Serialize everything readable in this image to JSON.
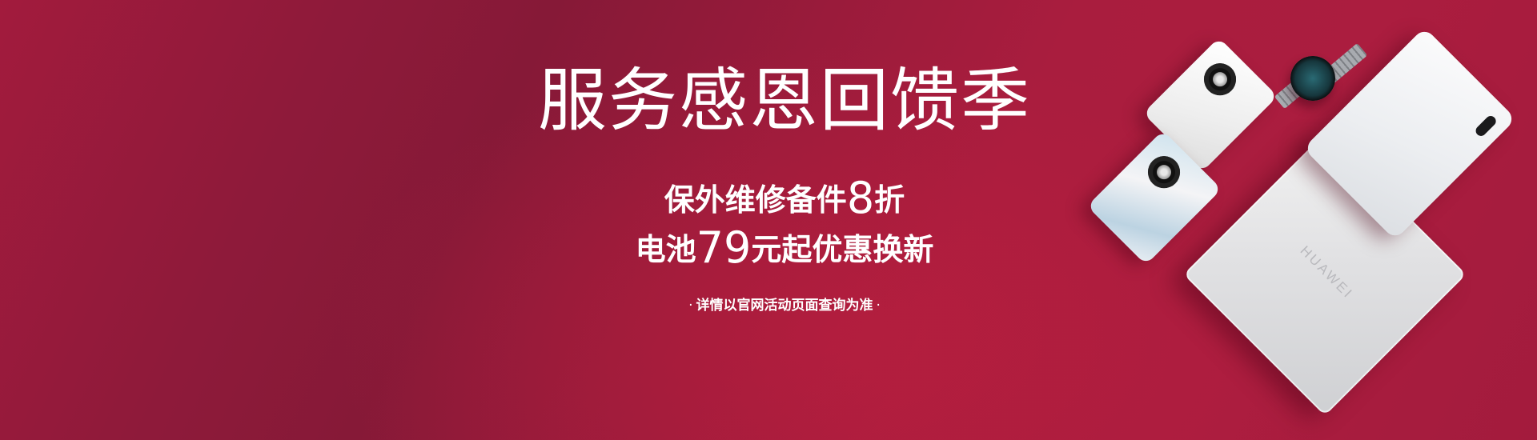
{
  "banner": {
    "title": "服务感恩回馈季",
    "line1": {
      "prefix": "保外维修备件",
      "number": "8",
      "suffix": "折"
    },
    "line2": {
      "prefix": "电池",
      "number": "79",
      "suffix": "元起优惠换新"
    },
    "note": {
      "dot_left": "·",
      "text": "详情以官网活动页面查询为准",
      "dot_right": "·"
    }
  },
  "products": {
    "laptop_logo": "HUAWEI",
    "items": [
      "laptop",
      "tablet",
      "phone-white",
      "phone-silver",
      "smartwatch"
    ]
  },
  "colors": {
    "background": "#a21b3d",
    "text": "#ffffff"
  }
}
